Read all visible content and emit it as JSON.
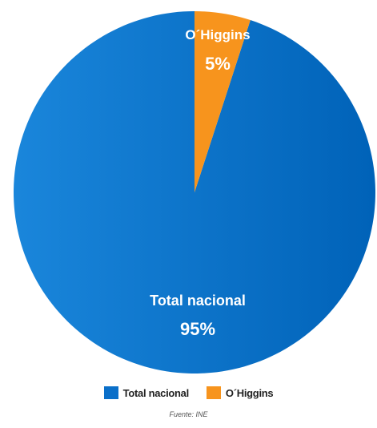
{
  "chart_data": {
    "type": "pie",
    "title": "",
    "slices": [
      {
        "name": "Total nacional",
        "value": 95,
        "label": "95%",
        "color": "#0a6fc9"
      },
      {
        "name": "O´Higgins",
        "value": 5,
        "label": "5%",
        "color": "#f7941d"
      }
    ],
    "legend": {
      "placement": "bottom",
      "items": [
        {
          "label": "Total nacional",
          "color": "#0a6fc9"
        },
        {
          "label": "O´Higgins",
          "color": "#f7941d"
        }
      ]
    },
    "source": "Fuente: INE"
  }
}
